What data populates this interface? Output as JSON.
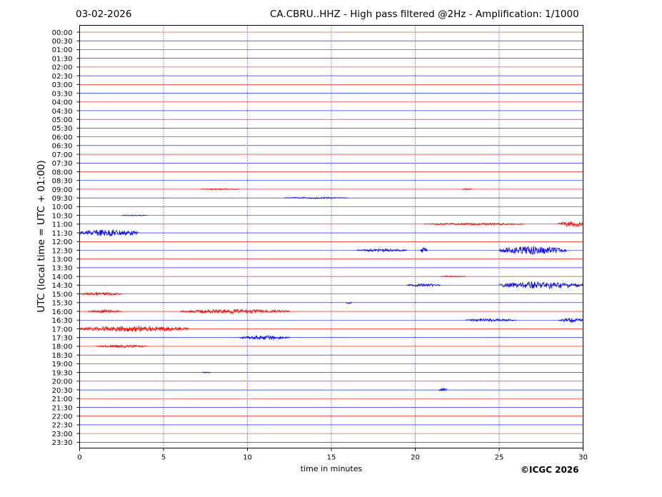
{
  "header": {
    "date": "03-02-2026",
    "title": "CA.CBRU..HHZ - High pass filtered @2Hz - Amplification: 1/1000"
  },
  "credit": "©ICGC 2026",
  "colors": {
    "odd_row": "#ff0000",
    "even_row": "#0000ff",
    "grid": "#00008b",
    "frame": "#000000"
  },
  "chart_data": {
    "type": "line",
    "xlabel": "time in minutes",
    "ylabel": "UTC (local time = UTC + 01:00)",
    "xlim": [
      0,
      30
    ],
    "xticks": [
      0,
      5,
      10,
      15,
      20,
      25,
      30
    ],
    "grid": "vertical dotted",
    "rows": [
      "00:00",
      "00:30",
      "01:00",
      "01:30",
      "02:00",
      "02:30",
      "03:00",
      "03:30",
      "04:00",
      "04:30",
      "05:00",
      "05:30",
      "06:00",
      "06:30",
      "07:00",
      "07:30",
      "08:00",
      "08:30",
      "09:00",
      "09:30",
      "10:00",
      "10:30",
      "11:00",
      "11:30",
      "12:00",
      "12:30",
      "13:00",
      "13:30",
      "14:00",
      "14:30",
      "15:00",
      "15:30",
      "16:00",
      "16:30",
      "17:00",
      "17:30",
      "18:00",
      "18:30",
      "19:00",
      "19:30",
      "20:00",
      "20:30",
      "21:00",
      "21:30",
      "22:00",
      "22:30",
      "23:00",
      "23:30"
    ],
    "events": [
      {
        "row": "09:00",
        "start": 7.2,
        "end": 9.5,
        "amp": 1
      },
      {
        "row": "09:00",
        "start": 22.8,
        "end": 23.4,
        "amp": 1
      },
      {
        "row": "09:30",
        "start": 12.2,
        "end": 16.0,
        "amp": 1
      },
      {
        "row": "10:30",
        "start": 2.5,
        "end": 4.0,
        "amp": 0.8
      },
      {
        "row": "11:00",
        "start": 20.5,
        "end": 26.5,
        "amp": 1.5
      },
      {
        "row": "11:00",
        "start": 28.5,
        "end": 30,
        "amp": 4
      },
      {
        "row": "11:30",
        "start": 0,
        "end": 3.5,
        "amp": 5
      },
      {
        "row": "12:30",
        "start": 16.5,
        "end": 19.5,
        "amp": 2
      },
      {
        "row": "12:30",
        "start": 20.3,
        "end": 20.7,
        "amp": 4
      },
      {
        "row": "12:30",
        "start": 25.0,
        "end": 29.0,
        "amp": 6
      },
      {
        "row": "14:00",
        "start": 21.5,
        "end": 23.0,
        "amp": 1
      },
      {
        "row": "14:30",
        "start": 19.5,
        "end": 21.5,
        "amp": 2
      },
      {
        "row": "14:30",
        "start": 25.0,
        "end": 30,
        "amp": 5
      },
      {
        "row": "15:00",
        "start": 0,
        "end": 2.5,
        "amp": 2
      },
      {
        "row": "15:30",
        "start": 15.9,
        "end": 16.2,
        "amp": 3
      },
      {
        "row": "16:00",
        "start": 0.5,
        "end": 2.5,
        "amp": 2
      },
      {
        "row": "16:00",
        "start": 6.0,
        "end": 12.5,
        "amp": 3
      },
      {
        "row": "16:30",
        "start": 23.0,
        "end": 26.0,
        "amp": 2
      },
      {
        "row": "16:30",
        "start": 28.5,
        "end": 30,
        "amp": 3
      },
      {
        "row": "17:00",
        "start": 0,
        "end": 6.5,
        "amp": 4
      },
      {
        "row": "17:30",
        "start": 9.5,
        "end": 12.5,
        "amp": 3
      },
      {
        "row": "18:00",
        "start": 1.0,
        "end": 4.0,
        "amp": 2
      },
      {
        "row": "19:30",
        "start": 7.3,
        "end": 7.8,
        "amp": 1
      },
      {
        "row": "20:30",
        "start": 21.4,
        "end": 21.9,
        "amp": 3
      }
    ]
  }
}
